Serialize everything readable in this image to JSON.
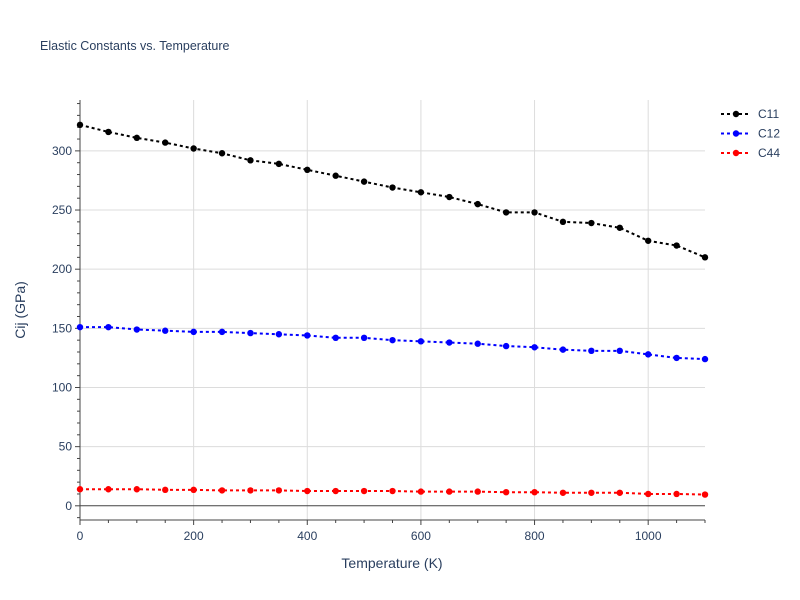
{
  "chart_data": {
    "type": "line",
    "title": "Elastic Constants vs. Temperature",
    "xlabel": "Temperature (K)",
    "ylabel": "Cij (GPa)",
    "xlim": [
      0,
      1100
    ],
    "ylim": [
      -12,
      343
    ],
    "xticks": [
      0,
      200,
      400,
      600,
      800,
      1000
    ],
    "yticks": [
      0,
      50,
      100,
      150,
      200,
      250,
      300
    ],
    "grid": true,
    "legend_position": "top-right",
    "line_style": "dotted",
    "markers": true,
    "x": [
      0,
      50,
      100,
      150,
      200,
      250,
      300,
      350,
      400,
      450,
      500,
      550,
      600,
      650,
      700,
      750,
      800,
      850,
      900,
      950,
      1000,
      1050,
      1100
    ],
    "series": [
      {
        "name": "C11",
        "color": "#000000",
        "values": [
          322,
          316,
          311,
          307,
          302,
          298,
          292,
          289,
          284,
          279,
          274,
          269,
          265,
          261,
          255,
          248,
          248,
          240,
          239,
          235,
          224,
          220,
          210
        ]
      },
      {
        "name": "C12",
        "color": "#0000ff",
        "values": [
          151,
          151,
          149,
          148,
          147,
          147,
          146,
          145,
          144,
          142,
          142,
          140,
          139,
          138,
          137,
          135,
          134,
          132,
          131,
          131,
          128,
          125,
          124
        ]
      },
      {
        "name": "C44",
        "color": "#ff0000",
        "values": [
          14,
          14,
          14,
          13.5,
          13.5,
          13,
          13,
          13,
          12.5,
          12.5,
          12.5,
          12.5,
          12,
          12,
          12,
          11.5,
          11.5,
          11,
          11,
          11,
          10,
          10,
          9.5
        ]
      }
    ]
  }
}
